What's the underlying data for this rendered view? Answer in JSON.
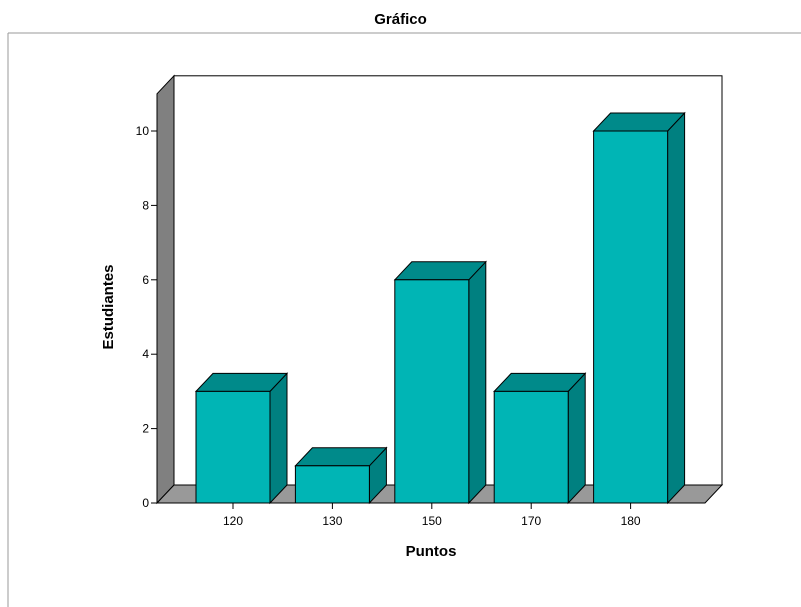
{
  "chart_data": {
    "type": "bar",
    "title": "Gráfico",
    "xlabel": "Puntos",
    "ylabel": "Estudiantes",
    "categories": [
      "120",
      "130",
      "150",
      "170",
      "180"
    ],
    "values": [
      3,
      1,
      6,
      3,
      10
    ],
    "ylim": [
      0,
      11
    ],
    "yticks": [
      0,
      2,
      4,
      6,
      8,
      10
    ],
    "grid": false,
    "style": "3d",
    "colors": {
      "bar_front": "#00b5b5",
      "bar_top": "#008a8a",
      "bar_side": "#008080",
      "wall": "#808080",
      "floor": "#999999"
    }
  }
}
